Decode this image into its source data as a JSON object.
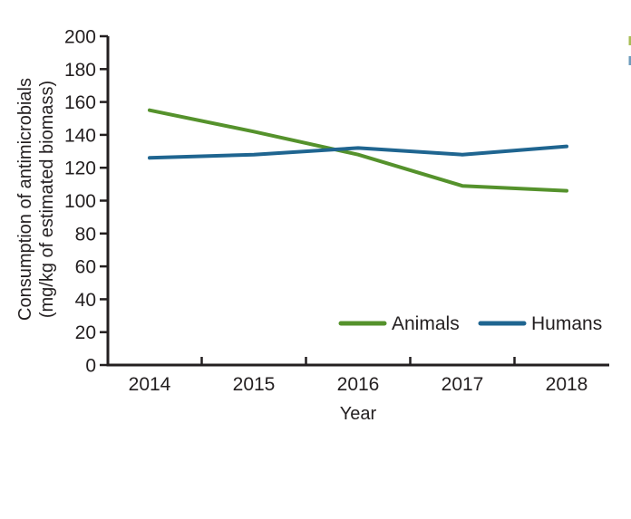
{
  "page": {
    "background": "#ffffff",
    "text_color": "#231f20"
  },
  "chart_data": {
    "type": "line",
    "title": "",
    "xlabel": "Year",
    "ylabel_line1": "Consumption of antimicrobials",
    "ylabel_line2": "(mg/kg of estimated biomass)",
    "x": [
      "2014",
      "2015",
      "2016",
      "2017",
      "2018"
    ],
    "ylim": [
      0,
      200
    ],
    "y_tick_step": 20,
    "y_ticks": [
      0,
      20,
      40,
      60,
      80,
      100,
      120,
      140,
      160,
      180,
      200
    ],
    "grid": false,
    "legend_position": "inside-bottom-right",
    "series": [
      {
        "name": "Animals",
        "color": "#55922c",
        "values": [
          155,
          142,
          128,
          109,
          106
        ]
      },
      {
        "name": "Humans",
        "color": "#1f6590",
        "values": [
          126,
          128,
          132,
          128,
          133
        ]
      }
    ],
    "edge_marks": [
      {
        "color": "#a8bd55",
        "y": 40,
        "height": 10
      },
      {
        "color": "#6e9cbd",
        "y": 62,
        "height": 10
      }
    ]
  }
}
